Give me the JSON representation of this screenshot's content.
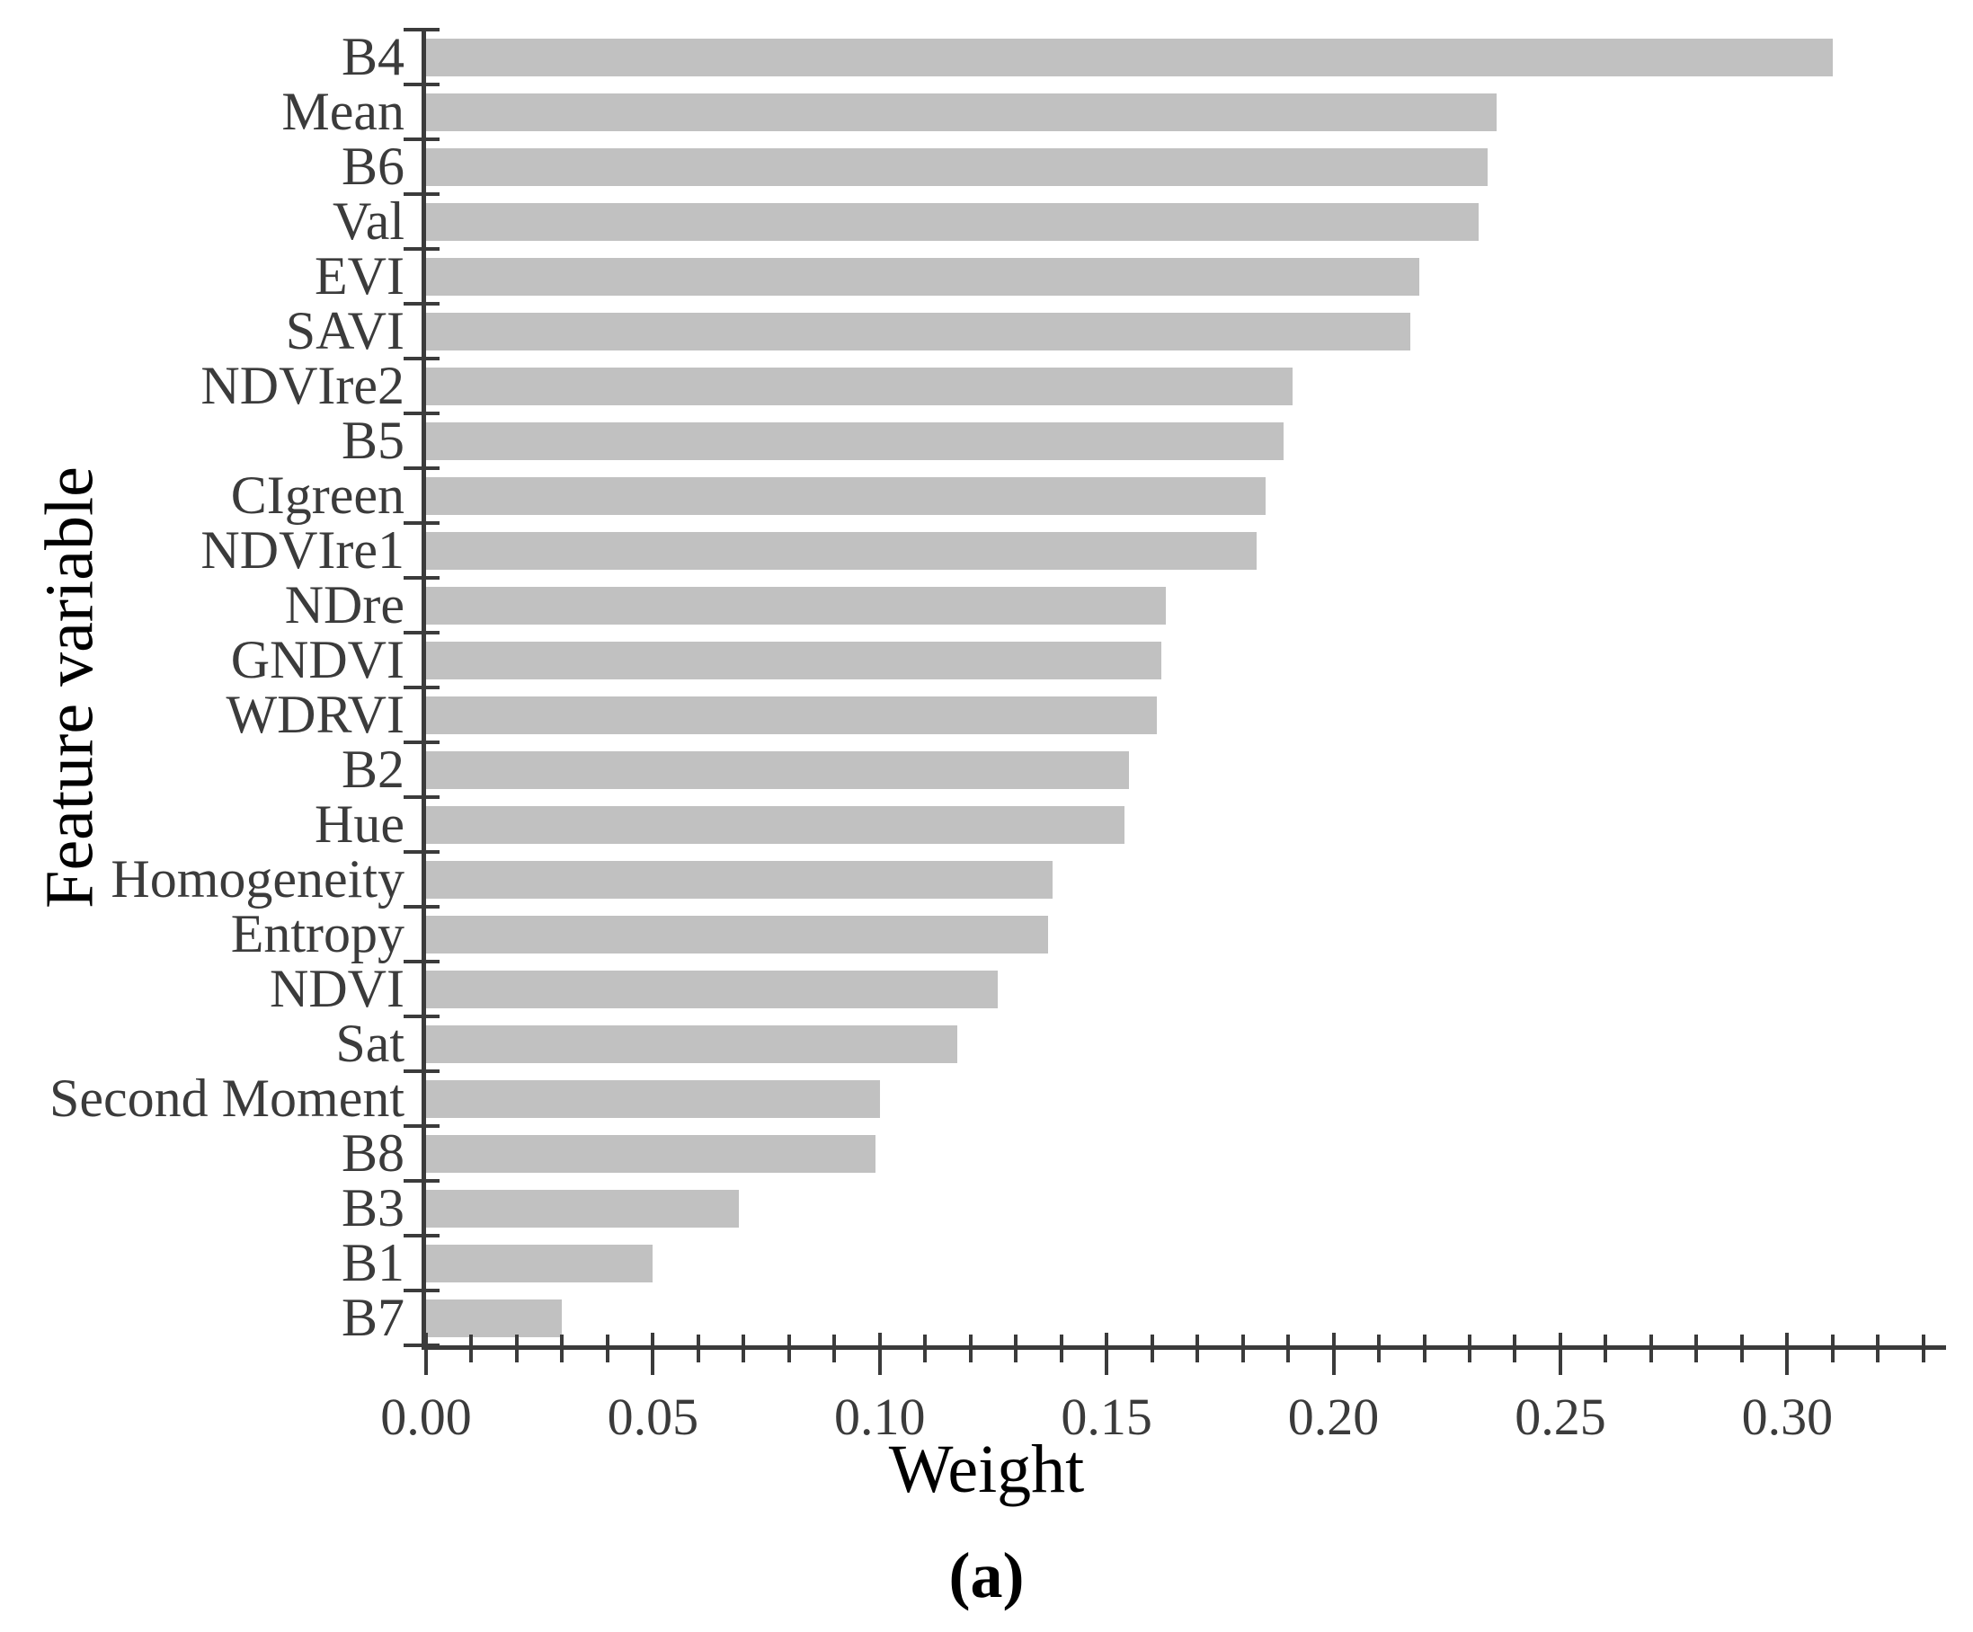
{
  "chart_data": {
    "type": "bar",
    "orientation": "horizontal",
    "title": "",
    "xlabel": "Weight",
    "ylabel": "Feature variable",
    "panel_label": "(a)",
    "categories": [
      "B4",
      "Mean",
      "B6",
      "Val",
      "EVI",
      "SAVI",
      "NDVIre2",
      "B5",
      "CIgreen",
      "NDVIre1",
      "NDre",
      "GNDVI",
      "WDRVI",
      "B2",
      "Hue",
      "Homogeneity",
      "Entropy",
      "NDVI",
      "Sat",
      "Second Moment",
      "B8",
      "B3",
      "B1",
      "B7"
    ],
    "values": [
      0.31,
      0.236,
      0.234,
      0.232,
      0.219,
      0.217,
      0.191,
      0.189,
      0.185,
      0.183,
      0.163,
      0.162,
      0.161,
      0.155,
      0.154,
      0.138,
      0.137,
      0.126,
      0.117,
      0.1,
      0.099,
      0.069,
      0.05,
      0.03
    ],
    "xticklabels": [
      "0.00",
      "0.05",
      "0.10",
      "0.15",
      "0.20",
      "0.25",
      "0.30"
    ],
    "x_major_step": 0.05,
    "x_minor_step": 0.01,
    "xlim": [
      0,
      0.335
    ],
    "grid": false,
    "legend": false,
    "bar_color": "#c1c1c1",
    "axis_color": "#3b3b3b"
  }
}
